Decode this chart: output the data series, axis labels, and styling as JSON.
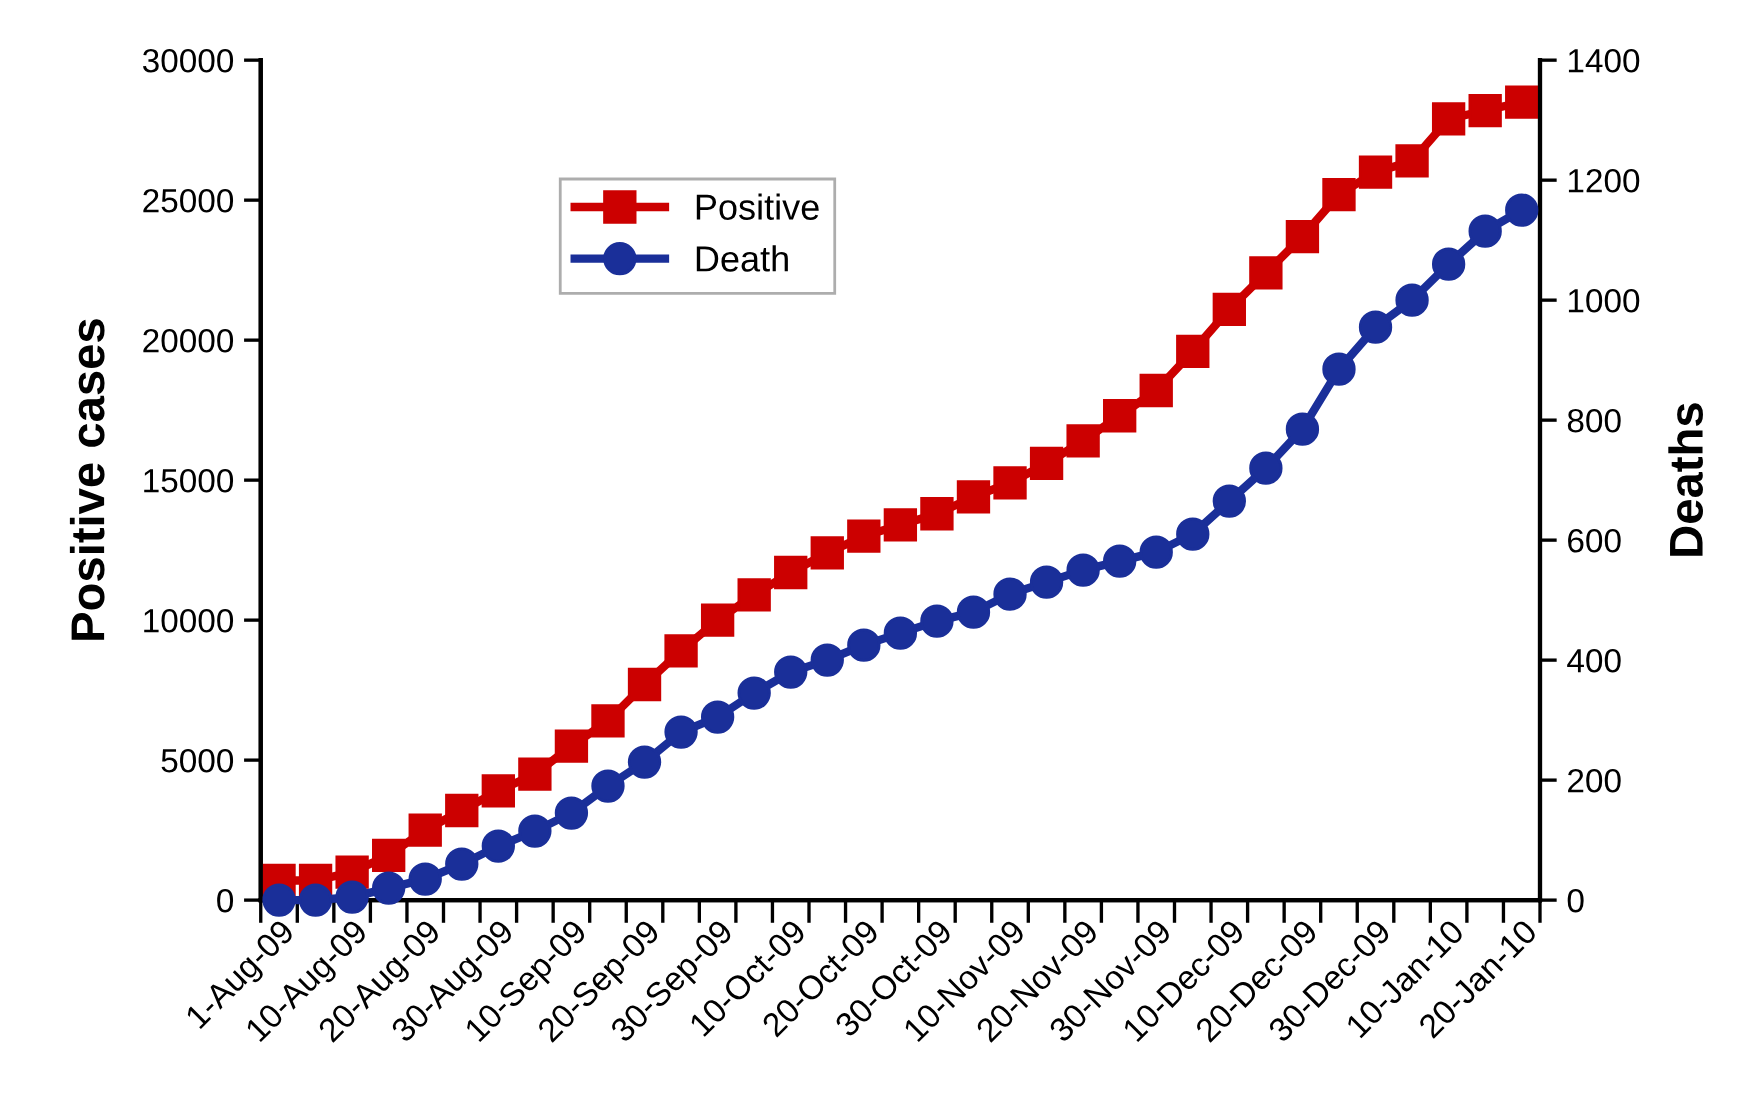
{
  "chart_data": {
    "type": "line",
    "xlabel": null,
    "ylabel": "Positive cases",
    "y2label": "Deaths",
    "categories": [
      "1-Aug-09",
      null,
      "10-Aug-09",
      null,
      "20-Aug-09",
      null,
      "30-Aug-09",
      null,
      "10-Sep-09",
      null,
      "20-Sep-09",
      null,
      "30-Sep-09",
      null,
      "10-Oct-09",
      null,
      "20-Oct-09",
      null,
      "30-Oct-09",
      null,
      "10-Nov-09",
      null,
      "20-Nov-09",
      null,
      "30-Nov-09",
      null,
      "10-Dec-09",
      null,
      "20-Dec-09",
      null,
      "30-Dec-09",
      null,
      "10-Jan-10",
      null,
      "20-Jan-10"
    ],
    "series": [
      {
        "name": "Positive",
        "color": "#cc0000",
        "marker": "square",
        "values": [
          700,
          700,
          1000,
          1600,
          2500,
          3200,
          3900,
          4500,
          5500,
          6400,
          7700,
          8900,
          10000,
          10900,
          11700,
          12400,
          13000,
          13400,
          13800,
          14400,
          14900,
          15600,
          16400,
          17300,
          18200,
          19600,
          21100,
          22400,
          23700,
          25200,
          26000,
          26400,
          27900,
          28200,
          28500
        ]
      },
      {
        "name": "Death",
        "color": "#1a2f99",
        "marker": "circle",
        "axis": "y2",
        "values": [
          0,
          0,
          5,
          20,
          35,
          60,
          90,
          115,
          145,
          190,
          230,
          280,
          305,
          345,
          380,
          400,
          425,
          445,
          465,
          480,
          510,
          530,
          550,
          565,
          580,
          610,
          665,
          720,
          785,
          885,
          955,
          1000,
          1060,
          1115,
          1150
        ]
      }
    ],
    "ylim": [
      0,
      30000
    ],
    "yticks": [
      0,
      5000,
      10000,
      15000,
      20000,
      25000,
      30000
    ],
    "y2lim": [
      0,
      1400
    ],
    "y2ticks": [
      0,
      200,
      400,
      600,
      800,
      1000,
      1200,
      1400
    ],
    "grid": false,
    "legend": "top left",
    "line_style": "solid"
  }
}
